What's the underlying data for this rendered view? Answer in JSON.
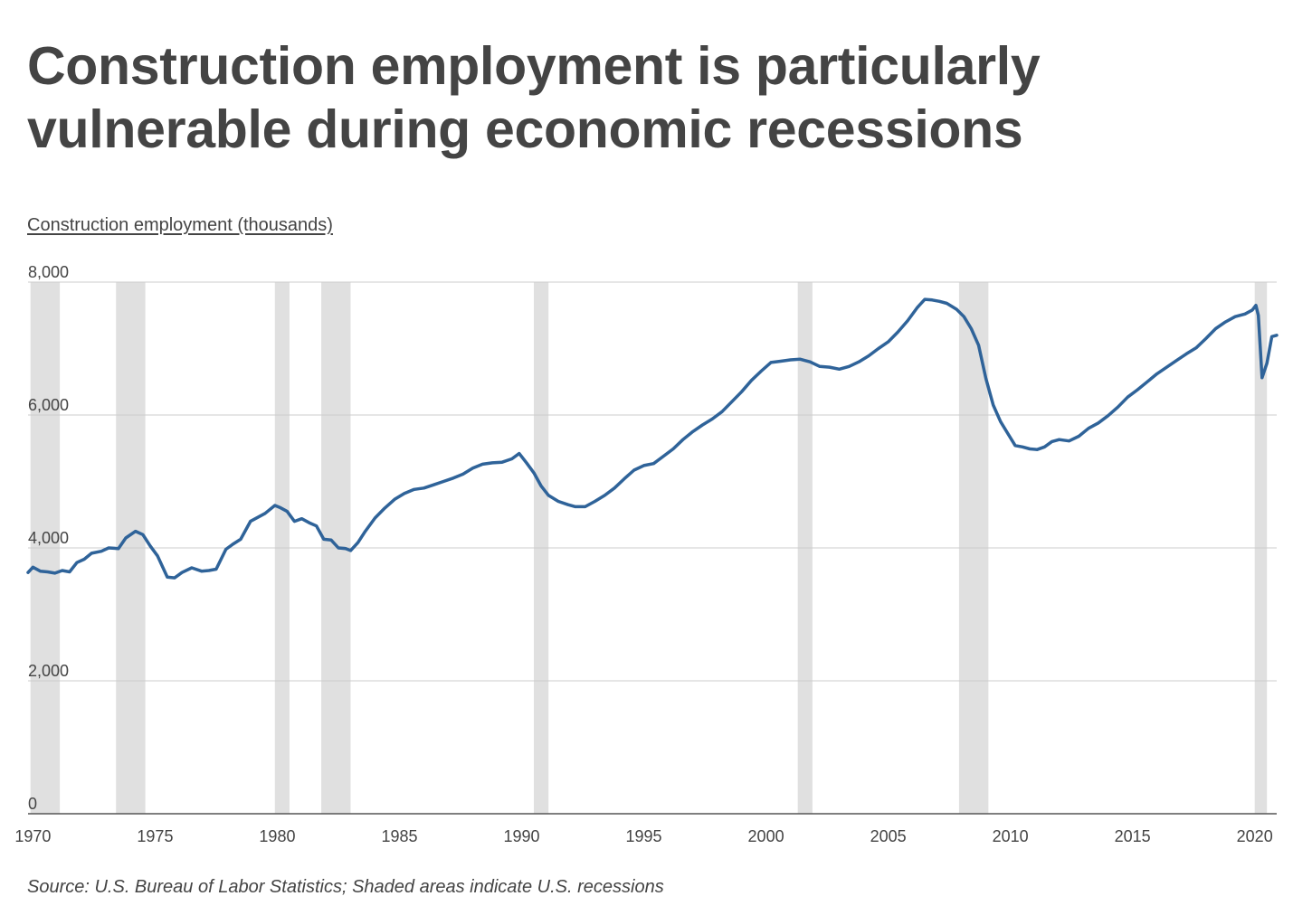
{
  "title": "Construction employment is particularly vulnerable during economic recessions",
  "source": "Source: U.S. Bureau of Labor Statistics; Shaded areas indicate U.S. recessions",
  "colors": {
    "line": "#2f6399",
    "recession": "#e0e0e0",
    "grid": "#cccccc",
    "text": "#444444"
  },
  "chart_data": {
    "type": "line",
    "title": "Construction employment is particularly vulnerable during economic recessions",
    "ylabel": "Construction employment (thousands)",
    "xlabel": "",
    "xlim": [
      1969.8,
      2020.9
    ],
    "ylim": [
      0,
      8000
    ],
    "yticks": [
      0,
      2000,
      4000,
      6000,
      8000
    ],
    "ytick_labels": [
      "0",
      "2,000",
      "4,000",
      "6,000",
      "8,000"
    ],
    "xticks": [
      1970,
      1975,
      1980,
      1985,
      1990,
      1995,
      2000,
      2005,
      2010,
      2015,
      2020
    ],
    "xtick_labels": [
      "1970",
      "1975",
      "1980",
      "1985",
      "1990",
      "1995",
      "2000",
      "2005",
      "2010",
      "2015",
      "2020"
    ],
    "grid": true,
    "recessions": [
      {
        "start": 1969.9,
        "end": 1971.1
      },
      {
        "start": 1973.4,
        "end": 1974.6
      },
      {
        "start": 1979.9,
        "end": 1980.5
      },
      {
        "start": 1981.8,
        "end": 1983.0
      },
      {
        "start": 1990.5,
        "end": 1991.1
      },
      {
        "start": 2001.3,
        "end": 2001.9
      },
      {
        "start": 2007.9,
        "end": 2009.1
      },
      {
        "start": 2020.0,
        "end": 2020.5
      }
    ],
    "series": [
      {
        "name": "Construction employment",
        "x": [
          1969.8,
          1970.0,
          1970.3,
          1970.6,
          1970.9,
          1971.2,
          1971.5,
          1971.8,
          1972.1,
          1972.4,
          1972.8,
          1973.1,
          1973.5,
          1973.8,
          1974.2,
          1974.5,
          1974.8,
          1975.1,
          1975.5,
          1975.8,
          1976.1,
          1976.5,
          1976.9,
          1977.2,
          1977.5,
          1977.9,
          1978.2,
          1978.5,
          1978.9,
          1979.2,
          1979.5,
          1979.9,
          1980.1,
          1980.4,
          1980.7,
          1981.0,
          1981.3,
          1981.6,
          1981.9,
          1982.2,
          1982.5,
          1982.8,
          1983.0,
          1983.3,
          1983.6,
          1984.0,
          1984.4,
          1984.8,
          1985.2,
          1985.6,
          1986.0,
          1986.4,
          1986.8,
          1987.2,
          1987.6,
          1988.0,
          1988.4,
          1988.8,
          1989.2,
          1989.6,
          1989.9,
          1990.2,
          1990.5,
          1990.8,
          1991.1,
          1991.5,
          1991.9,
          1992.2,
          1992.6,
          1993.0,
          1993.4,
          1993.8,
          1994.2,
          1994.6,
          1995.0,
          1995.4,
          1995.8,
          1996.2,
          1996.6,
          1997.0,
          1997.4,
          1997.8,
          1998.2,
          1998.6,
          1999.0,
          1999.4,
          1999.8,
          2000.2,
          2000.6,
          2001.0,
          2001.4,
          2001.8,
          2002.2,
          2002.6,
          2003.0,
          2003.4,
          2003.8,
          2004.2,
          2004.6,
          2005.0,
          2005.4,
          2005.8,
          2006.2,
          2006.5,
          2006.8,
          2007.1,
          2007.4,
          2007.8,
          2008.1,
          2008.4,
          2008.7,
          2009.0,
          2009.3,
          2009.6,
          2009.9,
          2010.2,
          2010.5,
          2010.8,
          2011.1,
          2011.4,
          2011.7,
          2012.0,
          2012.4,
          2012.8,
          2013.2,
          2013.6,
          2014.0,
          2014.4,
          2014.8,
          2015.2,
          2015.6,
          2016.0,
          2016.4,
          2016.8,
          2017.2,
          2017.6,
          2018.0,
          2018.4,
          2018.8,
          2019.2,
          2019.6,
          2019.9,
          2020.05,
          2020.15,
          2020.3,
          2020.5,
          2020.7,
          2020.9
        ],
        "values": [
          3630,
          3710,
          3650,
          3640,
          3620,
          3660,
          3640,
          3780,
          3830,
          3920,
          3950,
          4000,
          3990,
          4150,
          4250,
          4200,
          4030,
          3880,
          3560,
          3550,
          3630,
          3700,
          3650,
          3660,
          3680,
          3980,
          4060,
          4130,
          4400,
          4460,
          4520,
          4640,
          4610,
          4550,
          4400,
          4440,
          4380,
          4330,
          4130,
          4120,
          4000,
          3990,
          3960,
          4080,
          4250,
          4450,
          4600,
          4730,
          4820,
          4880,
          4900,
          4950,
          5000,
          5050,
          5110,
          5200,
          5260,
          5280,
          5290,
          5340,
          5420,
          5280,
          5130,
          4930,
          4790,
          4700,
          4650,
          4620,
          4620,
          4700,
          4790,
          4900,
          5040,
          5170,
          5240,
          5270,
          5380,
          5490,
          5630,
          5750,
          5850,
          5940,
          6050,
          6200,
          6350,
          6520,
          6660,
          6790,
          6810,
          6830,
          6840,
          6800,
          6730,
          6720,
          6690,
          6730,
          6800,
          6890,
          7000,
          7100,
          7250,
          7420,
          7620,
          7740,
          7730,
          7710,
          7680,
          7590,
          7480,
          7300,
          7050,
          6550,
          6150,
          5900,
          5720,
          5540,
          5520,
          5490,
          5480,
          5520,
          5600,
          5630,
          5610,
          5680,
          5800,
          5880,
          5990,
          6120,
          6270,
          6380,
          6500,
          6620,
          6720,
          6820,
          6920,
          7010,
          7150,
          7300,
          7400,
          7480,
          7520,
          7580,
          7650,
          7500,
          6560,
          6780,
          7180,
          7200
        ]
      }
    ]
  }
}
